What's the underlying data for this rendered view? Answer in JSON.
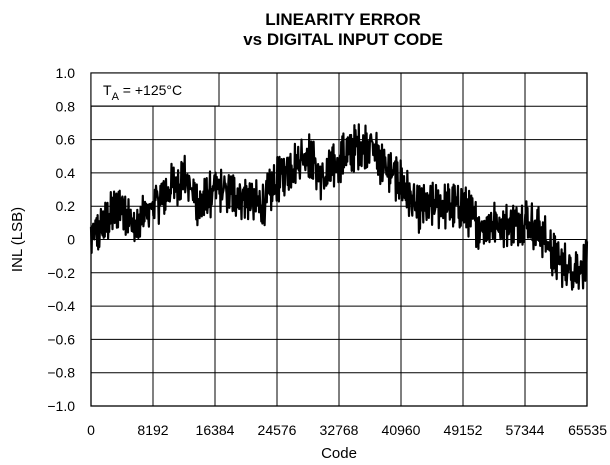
{
  "chart_data": {
    "type": "line",
    "title_lines": [
      "LINEARITY ERROR",
      "vs DIGITAL INPUT CODE"
    ],
    "xlabel": "Code",
    "ylabel": "INL (LSB)",
    "annotation": {
      "prefix": "T",
      "subscript": "A",
      "suffix": " = +125°C"
    },
    "xlim": [
      0,
      65535
    ],
    "ylim": [
      -1.0,
      1.0
    ],
    "xticks": [
      0,
      8192,
      16384,
      24576,
      32768,
      40960,
      49152,
      57344,
      65535
    ],
    "xtick_labels": [
      "0",
      "8192",
      "16384",
      "24576",
      "32768",
      "40960",
      "49152",
      "57344",
      "65535"
    ],
    "yticks": [
      1.0,
      0.8,
      0.6,
      0.4,
      0.2,
      0,
      -0.2,
      -0.4,
      -0.6,
      -0.8,
      -1.0
    ],
    "ytick_labels": [
      "1.0",
      "0.8",
      "0.6",
      "0.4",
      "0.2",
      "0",
      "−0.2",
      "−0.4",
      "−0.6",
      "−0.8",
      "−1.0"
    ],
    "grid": true,
    "series": [
      {
        "color": "#000000",
        "x": [
          0,
          1024,
          2048,
          3072,
          4096,
          5120,
          6144,
          7168,
          8192,
          10240,
          12288,
          14336,
          16384,
          18432,
          20480,
          22528,
          24576,
          26624,
          28672,
          30720,
          32768,
          34816,
          36864,
          38912,
          40960,
          43008,
          45056,
          47104,
          49152,
          51200,
          53248,
          55296,
          57344,
          59392,
          61440,
          63488,
          65535
        ],
        "y": [
          0.0,
          0.05,
          0.1,
          0.18,
          0.22,
          0.12,
          0.05,
          0.15,
          0.2,
          0.3,
          0.38,
          0.2,
          0.3,
          0.28,
          0.25,
          0.2,
          0.35,
          0.45,
          0.52,
          0.35,
          0.48,
          0.55,
          0.58,
          0.42,
          0.35,
          0.18,
          0.2,
          0.2,
          0.2,
          0.08,
          0.1,
          0.08,
          0.12,
          0.05,
          -0.12,
          -0.18,
          -0.15
        ]
      }
    ]
  }
}
